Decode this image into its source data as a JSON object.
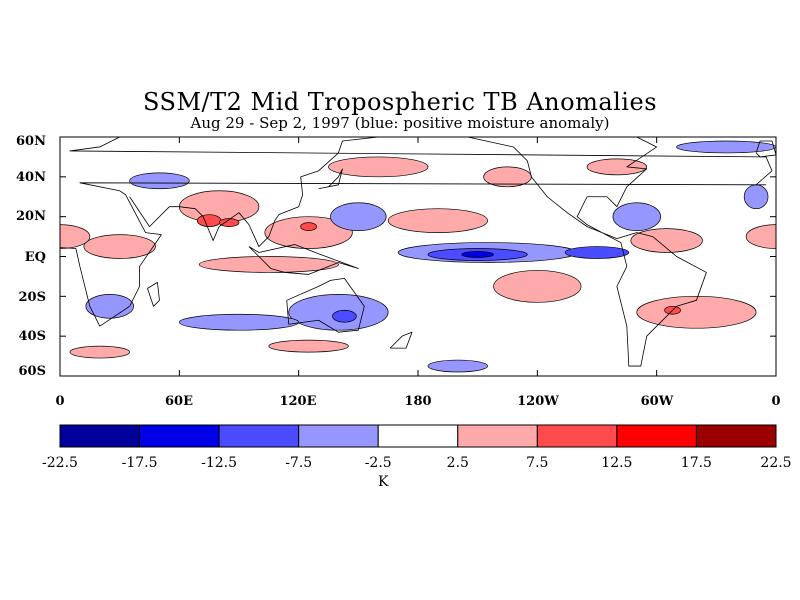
{
  "title": "SSM/T2 Mid Tropospheric TB Anomalies",
  "subtitle": "Aug 29 - Sep 2, 1997 (blue: positive moisture anomaly)",
  "lat_labels": [
    "60N",
    "40N",
    "20N",
    "EQ",
    "20S",
    "40S",
    "60S"
  ],
  "lon_labels": [
    "0",
    "60E",
    "120E",
    "180",
    "120W",
    "60W",
    "0"
  ],
  "colorbar": {
    "levels": [
      "-22.5",
      "-17.5",
      "-12.5",
      "-7.5",
      "-2.5",
      "2.5",
      "7.5",
      "12.5",
      "17.5",
      "22.5"
    ],
    "colors": [
      "#00009b",
      "#0000e6",
      "#4b4bff",
      "#9696ff",
      "#ffffff",
      "#ffaaaa",
      "#ff4b4b",
      "#ff0000",
      "#9b0000"
    ],
    "unit": "K"
  },
  "map": {
    "lat_range": [
      -60,
      60
    ],
    "lon_range": [
      0,
      360
    ],
    "anomalies": [
      {
        "lon": 30,
        "lat": 5,
        "rx": 18,
        "ry": 6,
        "v": 5
      },
      {
        "lon": 80,
        "lat": 25,
        "rx": 20,
        "ry": 8,
        "v": 5
      },
      {
        "lon": 75,
        "lat": 18,
        "rx": 6,
        "ry": 3,
        "v": 10
      },
      {
        "lon": 50,
        "lat": 38,
        "rx": 15,
        "ry": 4,
        "v": -5
      },
      {
        "lon": 125,
        "lat": 12,
        "rx": 22,
        "ry": 8,
        "v": 5
      },
      {
        "lon": 125,
        "lat": 15,
        "rx": 4,
        "ry": 2,
        "v": 10
      },
      {
        "lon": 85,
        "lat": 17,
        "rx": 5,
        "ry": 2,
        "v": 10
      },
      {
        "lon": 105,
        "lat": -4,
        "rx": 35,
        "ry": 4,
        "v": 5
      },
      {
        "lon": 160,
        "lat": 45,
        "rx": 25,
        "ry": 5,
        "v": 5
      },
      {
        "lon": 150,
        "lat": 20,
        "rx": 14,
        "ry": 7,
        "v": -5
      },
      {
        "lon": 190,
        "lat": 18,
        "rx": 25,
        "ry": 6,
        "v": 5
      },
      {
        "lon": 215,
        "lat": 2,
        "rx": 45,
        "ry": 5,
        "v": -5
      },
      {
        "lon": 210,
        "lat": 1,
        "rx": 25,
        "ry": 3,
        "v": -10
      },
      {
        "lon": 210,
        "lat": 1,
        "rx": 8,
        "ry": 1.5,
        "v": -15
      },
      {
        "lon": 270,
        "lat": 2,
        "rx": 16,
        "ry": 3,
        "v": -10
      },
      {
        "lon": 305,
        "lat": 8,
        "rx": 18,
        "ry": 6,
        "v": 5
      },
      {
        "lon": 290,
        "lat": 20,
        "rx": 12,
        "ry": 7,
        "v": -5
      },
      {
        "lon": 140,
        "lat": -28,
        "rx": 25,
        "ry": 9,
        "v": -5
      },
      {
        "lon": 143,
        "lat": -30,
        "rx": 6,
        "ry": 3,
        "v": -10
      },
      {
        "lon": 90,
        "lat": -33,
        "rx": 30,
        "ry": 4,
        "v": -5
      },
      {
        "lon": 25,
        "lat": -25,
        "rx": 12,
        "ry": 6,
        "v": -5
      },
      {
        "lon": 240,
        "lat": -15,
        "rx": 22,
        "ry": 8,
        "v": 5
      },
      {
        "lon": 320,
        "lat": -28,
        "rx": 30,
        "ry": 8,
        "v": 5
      },
      {
        "lon": 308,
        "lat": -27,
        "rx": 4,
        "ry": 2,
        "v": 10
      },
      {
        "lon": 125,
        "lat": -45,
        "rx": 20,
        "ry": 3,
        "v": 5
      },
      {
        "lon": 20,
        "lat": -48,
        "rx": 15,
        "ry": 3,
        "v": 5
      },
      {
        "lon": 360,
        "lat": 10,
        "rx": 15,
        "ry": 6,
        "v": 5
      },
      {
        "lon": 350,
        "lat": 30,
        "rx": 6,
        "ry": 6,
        "v": -5
      },
      {
        "lon": 280,
        "lat": 45,
        "rx": 15,
        "ry": 4,
        "v": 5
      },
      {
        "lon": 225,
        "lat": 40,
        "rx": 12,
        "ry": 5,
        "v": 5
      },
      {
        "lon": 335,
        "lat": 55,
        "rx": 25,
        "ry": 3,
        "v": -5
      },
      {
        "lon": 200,
        "lat": -55,
        "rx": 15,
        "ry": 3,
        "v": -5
      }
    ],
    "coastlines": [
      [
        [
          350,
          36
        ],
        [
          358,
          43
        ],
        [
          355,
          50
        ],
        [
          5,
          53
        ],
        [
          20,
          55
        ],
        [
          30,
          60
        ],
        [
          40,
          66
        ],
        [
          60,
          70
        ],
        [
          80,
          73
        ],
        [
          110,
          76
        ],
        [
          140,
          72
        ],
        [
          160,
          70
        ],
        [
          180,
          66
        ]
      ],
      [
        [
          355,
          36
        ],
        [
          10,
          37
        ],
        [
          30,
          33
        ],
        [
          33,
          31
        ],
        [
          43,
          12
        ],
        [
          51,
          11
        ],
        [
          40,
          -5
        ],
        [
          40,
          -15
        ],
        [
          35,
          -25
        ],
        [
          20,
          -35
        ],
        [
          15,
          -25
        ],
        [
          10,
          -5
        ],
        [
          8,
          4
        ],
        [
          -10,
          5
        ],
        [
          -17,
          15
        ],
        [
          -10,
          35
        ],
        [
          -5,
          36
        ]
      ],
      [
        [
          35,
          30
        ],
        [
          45,
          15
        ],
        [
          55,
          25
        ],
        [
          60,
          25
        ],
        [
          68,
          24
        ],
        [
          72,
          20
        ],
        [
          77,
          8
        ],
        [
          80,
          15
        ],
        [
          90,
          22
        ],
        [
          95,
          16
        ],
        [
          100,
          5
        ],
        [
          105,
          10
        ],
        [
          108,
          18
        ],
        [
          110,
          21
        ],
        [
          120,
          25
        ],
        [
          122,
          31
        ],
        [
          121,
          40
        ],
        [
          130,
          43
        ],
        [
          140,
          52
        ],
        [
          142,
          58
        ],
        [
          160,
          60
        ],
        [
          163,
          68
        ],
        [
          180,
          66
        ]
      ],
      [
        [
          114,
          -22
        ],
        [
          115,
          -34
        ],
        [
          130,
          -32
        ],
        [
          140,
          -38
        ],
        [
          150,
          -37
        ],
        [
          153,
          -25
        ],
        [
          143,
          -11
        ],
        [
          136,
          -12
        ],
        [
          130,
          -15
        ],
        [
          114,
          -22
        ]
      ],
      [
        [
          95,
          5
        ],
        [
          106,
          -6
        ],
        [
          113,
          -8
        ],
        [
          125,
          -9
        ],
        [
          140,
          -3
        ],
        [
          150,
          -6
        ],
        [
          131,
          1
        ],
        [
          118,
          6
        ],
        [
          100,
          2
        ],
        [
          95,
          5
        ]
      ],
      [
        [
          130,
          34
        ],
        [
          135,
          35
        ],
        [
          140,
          40
        ],
        [
          142,
          44
        ],
        [
          140,
          36
        ],
        [
          130,
          34
        ]
      ],
      [
        [
          166,
          -46
        ],
        [
          172,
          -40
        ],
        [
          177,
          -38
        ],
        [
          174,
          -46
        ],
        [
          166,
          -46
        ]
      ],
      [
        [
          44,
          -16
        ],
        [
          49,
          -13
        ],
        [
          50,
          -22
        ],
        [
          47,
          -25
        ],
        [
          44,
          -16
        ]
      ],
      [
        [
          270,
          69
        ],
        [
          290,
          60
        ],
        [
          300,
          55
        ],
        [
          285,
          45
        ],
        [
          295,
          44
        ],
        [
          285,
          35
        ],
        [
          280,
          25
        ],
        [
          275,
          30
        ],
        [
          265,
          30
        ],
        [
          260,
          20
        ],
        [
          265,
          16
        ],
        [
          280,
          8
        ],
        [
          282,
          7
        ],
        [
          285,
          -5
        ],
        [
          280,
          -15
        ],
        [
          285,
          -35
        ],
        [
          286,
          -55
        ],
        [
          292,
          -55
        ],
        [
          295,
          -40
        ],
        [
          300,
          -35
        ],
        [
          310,
          -25
        ],
        [
          320,
          -22
        ],
        [
          325,
          -8
        ],
        [
          310,
          0
        ],
        [
          298,
          10
        ],
        [
          290,
          12
        ],
        [
          280,
          9
        ],
        [
          265,
          15
        ],
        [
          255,
          22
        ],
        [
          245,
          30
        ],
        [
          237,
          40
        ],
        [
          235,
          48
        ],
        [
          228,
          55
        ],
        [
          205,
          60
        ],
        [
          195,
          65
        ],
        [
          200,
          70
        ],
        [
          240,
          70
        ],
        [
          270,
          69
        ]
      ],
      [
        [
          302,
          60
        ],
        [
          315,
          60
        ],
        [
          338,
          70
        ],
        [
          330,
          82
        ],
        [
          300,
          80
        ],
        [
          302,
          60
        ]
      ],
      [
        [
          350,
          52
        ],
        [
          352,
          58
        ],
        [
          358,
          58
        ],
        [
          360,
          51
        ],
        [
          352,
          50
        ],
        [
          350,
          52
        ]
      ]
    ]
  }
}
